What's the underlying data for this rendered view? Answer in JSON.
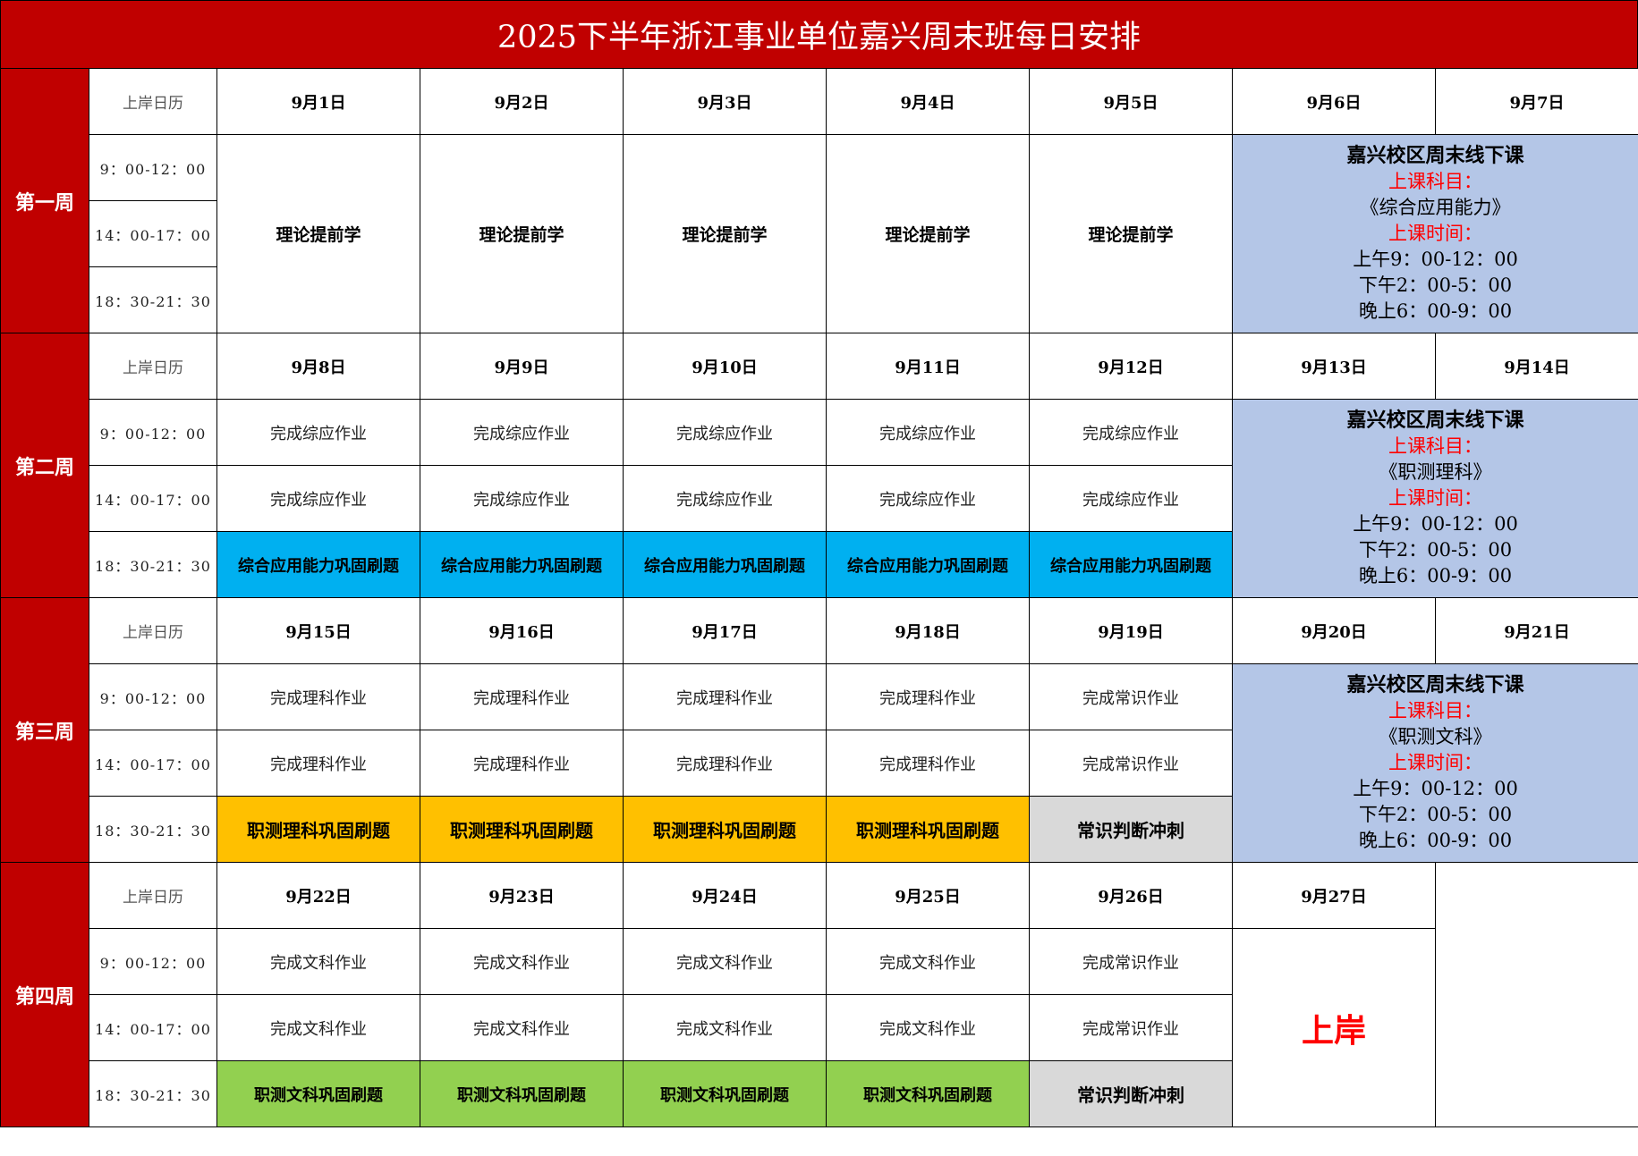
{
  "title": "2025下半年浙江事业单位嘉兴周末班每日安排",
  "colors": {
    "title_bar": "#C00000",
    "blue": "#00B0F0",
    "orange": "#FFC000",
    "green": "#92D050",
    "gray": "#D9D9D9",
    "weekend": "#B4C6E7",
    "red_text": "#FF0000"
  },
  "calendar_label": "上岸日历",
  "time_slots": [
    "9：00-12：00",
    "14：00-17：00",
    "18：30-21：30"
  ],
  "weeks": [
    {
      "label": "第一周",
      "dates": [
        "9月1日",
        "9月2日",
        "9月3日",
        "9月4日",
        "9月5日",
        "9月6日",
        "9月7日"
      ],
      "rows": [
        [
          {
            "text": "理论提前学",
            "rowspan": 3,
            "style": "bold"
          },
          {
            "text": "理论提前学",
            "rowspan": 3,
            "style": "bold"
          },
          {
            "text": "理论提前学",
            "rowspan": 3,
            "style": "bold"
          },
          {
            "text": "理论提前学",
            "rowspan": 3,
            "style": "bold"
          },
          {
            "text": "理论提前学",
            "rowspan": 3,
            "style": "bold"
          }
        ],
        [],
        []
      ],
      "weekend": {
        "title": "嘉兴校区周末线下课",
        "subject_label": "上课科目：",
        "subject": "《综合应用能力》",
        "time_label": "上课时间：",
        "times": [
          "上午9：00-12：00",
          "下午2：00-5：00",
          "晚上6：00-9：00"
        ]
      }
    },
    {
      "label": "第二周",
      "dates": [
        "9月8日",
        "9月9日",
        "9月10日",
        "9月11日",
        "9月12日",
        "9月13日",
        "9月14日"
      ],
      "rows": [
        [
          {
            "text": "完成综应作业"
          },
          {
            "text": "完成综应作业"
          },
          {
            "text": "完成综应作业"
          },
          {
            "text": "完成综应作业"
          },
          {
            "text": "完成综应作业"
          }
        ],
        [
          {
            "text": "完成综应作业"
          },
          {
            "text": "完成综应作业"
          },
          {
            "text": "完成综应作业"
          },
          {
            "text": "完成综应作业"
          },
          {
            "text": "完成综应作业"
          }
        ],
        [
          {
            "text": "综合应用能力巩固刷题",
            "style": "blue"
          },
          {
            "text": "综合应用能力巩固刷题",
            "style": "blue"
          },
          {
            "text": "综合应用能力巩固刷题",
            "style": "blue"
          },
          {
            "text": "综合应用能力巩固刷题",
            "style": "blue"
          },
          {
            "text": "综合应用能力巩固刷题",
            "style": "blue"
          }
        ]
      ],
      "weekend": {
        "title": "嘉兴校区周末线下课",
        "subject_label": "上课科目：",
        "subject": "《职测理科》",
        "time_label": "上课时间：",
        "times": [
          "上午9：00-12：00",
          "下午2：00-5：00",
          "晚上6：00-9：00"
        ]
      }
    },
    {
      "label": "第三周",
      "dates": [
        "9月15日",
        "9月16日",
        "9月17日",
        "9月18日",
        "9月19日",
        "9月20日",
        "9月21日"
      ],
      "rows": [
        [
          {
            "text": "完成理科作业"
          },
          {
            "text": "完成理科作业"
          },
          {
            "text": "完成理科作业"
          },
          {
            "text": "完成理科作业"
          },
          {
            "text": "完成常识作业"
          }
        ],
        [
          {
            "text": "完成理科作业"
          },
          {
            "text": "完成理科作业"
          },
          {
            "text": "完成理科作业"
          },
          {
            "text": "完成理科作业"
          },
          {
            "text": "完成常识作业"
          }
        ],
        [
          {
            "text": "职测理科巩固刷题",
            "style": "orange"
          },
          {
            "text": "职测理科巩固刷题",
            "style": "orange"
          },
          {
            "text": "职测理科巩固刷题",
            "style": "orange"
          },
          {
            "text": "职测理科巩固刷题",
            "style": "orange"
          },
          {
            "text": "常识判断冲刺",
            "style": "gray"
          }
        ]
      ],
      "weekend": {
        "title": "嘉兴校区周末线下课",
        "subject_label": "上课科目：",
        "subject": "《职测文科》",
        "time_label": "上课时间：",
        "times": [
          "上午9：00-12：00",
          "下午2：00-5：00",
          "晚上6：00-9：00"
        ]
      }
    },
    {
      "label": "第四周",
      "dates": [
        "9月22日",
        "9月23日",
        "9月24日",
        "9月25日",
        "9月26日",
        "9月27日"
      ],
      "rows": [
        [
          {
            "text": "完成文科作业"
          },
          {
            "text": "完成文科作业"
          },
          {
            "text": "完成文科作业"
          },
          {
            "text": "完成文科作业"
          },
          {
            "text": "完成常识作业"
          },
          {
            "text": "上岸",
            "rowspan": 3,
            "style": "goal"
          }
        ],
        [
          {
            "text": "完成文科作业"
          },
          {
            "text": "完成文科作业"
          },
          {
            "text": "完成文科作业"
          },
          {
            "text": "完成文科作业"
          },
          {
            "text": "完成常识作业"
          }
        ],
        [
          {
            "text": "职测文科巩固刷题",
            "style": "green"
          },
          {
            "text": "职测文科巩固刷题",
            "style": "green"
          },
          {
            "text": "职测文科巩固刷题",
            "style": "green"
          },
          {
            "text": "职测文科巩固刷题",
            "style": "green"
          },
          {
            "text": "常识判断冲刺",
            "style": "gray"
          }
        ]
      ],
      "blank_last_column": true
    }
  ]
}
